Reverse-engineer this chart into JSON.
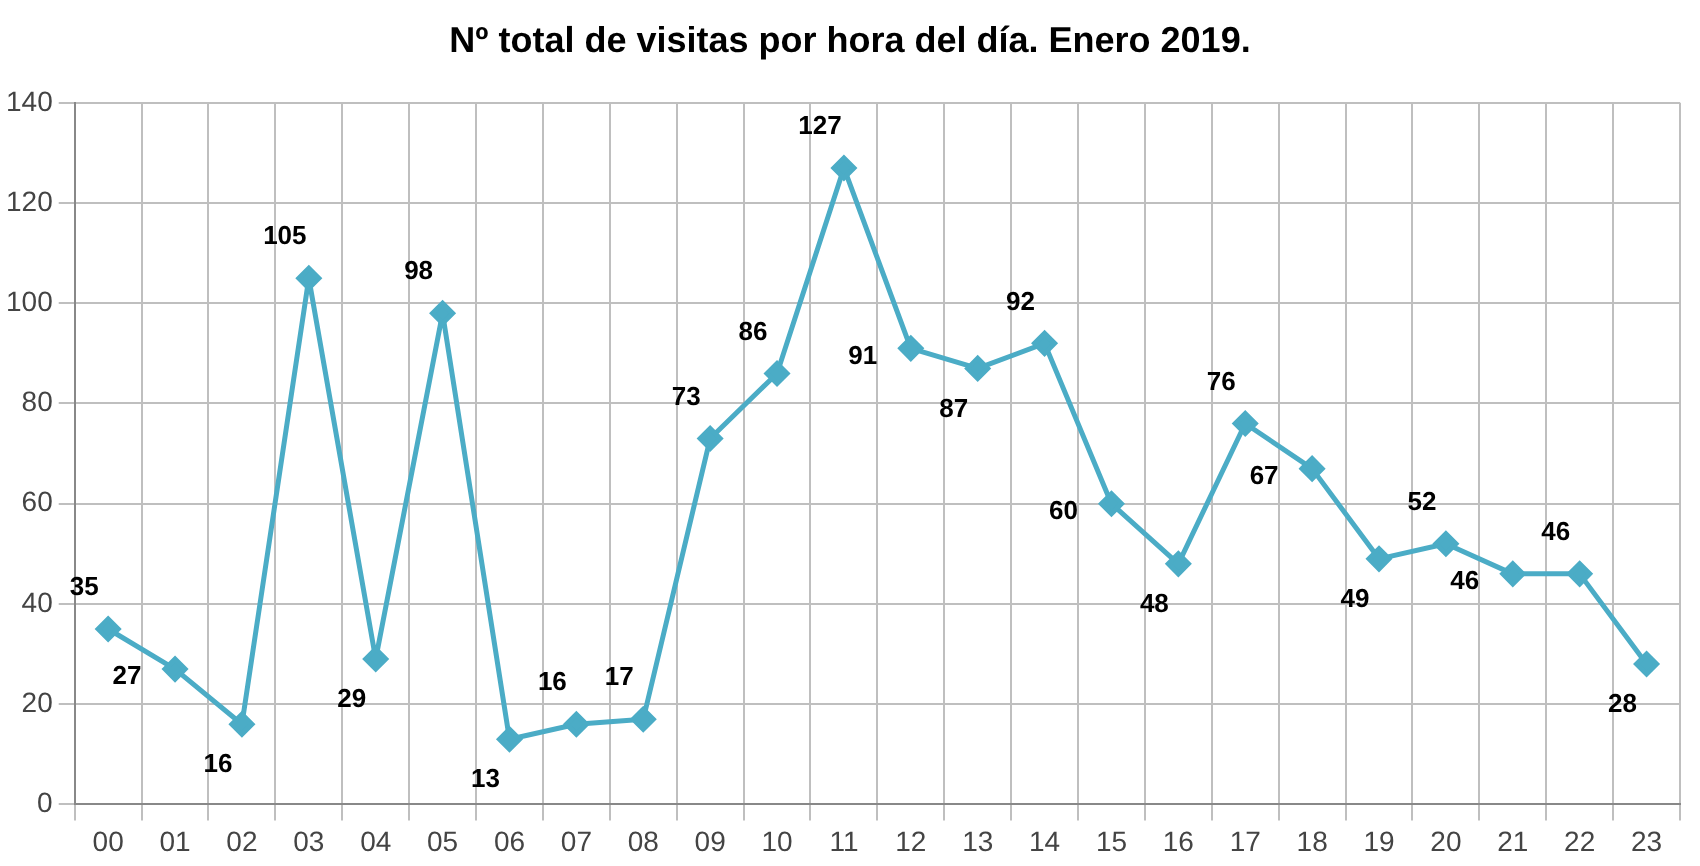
{
  "chart_data": {
    "type": "line",
    "title": "Nº total de visitas por hora del día. Enero 2019.",
    "categories": [
      "00",
      "01",
      "02",
      "03",
      "04",
      "05",
      "06",
      "07",
      "08",
      "09",
      "10",
      "11",
      "12",
      "13",
      "14",
      "15",
      "16",
      "17",
      "18",
      "19",
      "20",
      "21",
      "22",
      "23"
    ],
    "series": [
      {
        "color": "#4bacc6",
        "values": [
          35,
          27,
          16,
          105,
          29,
          98,
          13,
          16,
          17,
          73,
          86,
          127,
          91,
          87,
          92,
          60,
          48,
          76,
          67,
          49,
          52,
          46,
          46,
          28
        ]
      }
    ],
    "ylim": [
      0,
      140
    ],
    "yticks": [
      0,
      20,
      40,
      60,
      80,
      100,
      120,
      140
    ],
    "grid": true,
    "marker": "diamond",
    "data_labels": true,
    "legend": false
  }
}
